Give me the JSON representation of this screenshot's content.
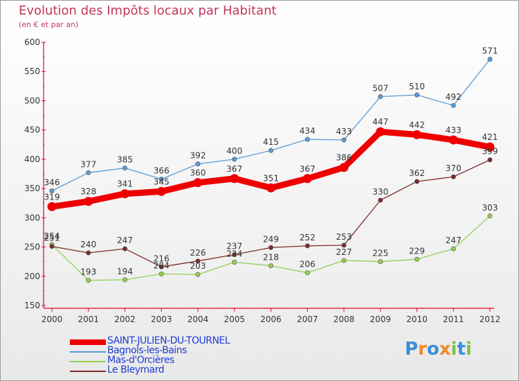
{
  "title": "Evolution des Impôts locaux par Habitant",
  "subtitle": "(en € et par an)",
  "colors": {
    "axis": "#e8002a",
    "label": "#333333",
    "title": "#c2355a"
  },
  "chart_data": {
    "type": "line",
    "title": "Evolution des Impôts locaux par Habitant",
    "subtitle": "(en € et par an)",
    "xlabel": "",
    "ylabel": "",
    "ylim": [
      150,
      600
    ],
    "yticks": [
      150,
      200,
      250,
      300,
      350,
      400,
      450,
      500,
      550,
      600
    ],
    "grid": false,
    "legend_position": "bottom-left",
    "categories": [
      "2000",
      "2001",
      "2002",
      "2003",
      "2004",
      "2005",
      "2006",
      "2007",
      "2008",
      "2009",
      "2010",
      "2011",
      "2012"
    ],
    "series": [
      {
        "name": "SAINT-JULIEN-DU-TOURNEL",
        "color": "#ee0000",
        "legend_text_color": "#1f3cd6",
        "bold": true,
        "values": [
          319,
          328,
          341,
          345,
          360,
          367,
          351,
          367,
          386,
          447,
          442,
          433,
          421
        ]
      },
      {
        "name": "Bagnols-les-Bains",
        "color": "#5b9bd5",
        "legend_text_color": "#1f3cd6",
        "bold": false,
        "values": [
          346,
          377,
          385,
          366,
          392,
          400,
          415,
          434,
          433,
          507,
          510,
          492,
          571
        ]
      },
      {
        "name": "Mas-d'Orcières",
        "color": "#92d050",
        "legend_text_color": "#1f3cd6",
        "bold": false,
        "values": [
          254,
          193,
          194,
          204,
          203,
          224,
          218,
          206,
          227,
          225,
          229,
          247,
          303
        ]
      },
      {
        "name": "Le Bleymard",
        "color": "#7b2c2c",
        "legend_text_color": "#1f3cd6",
        "bold": false,
        "values": [
          251,
          240,
          247,
          216,
          226,
          237,
          249,
          252,
          253,
          330,
          362,
          370,
          399
        ]
      }
    ]
  },
  "logo": {
    "letters": [
      "P",
      "r",
      "o",
      "x",
      "i",
      "t",
      "i"
    ],
    "colors": [
      "#3a8fd8",
      "#f08a24",
      "#3a8fd8",
      "#f08a24",
      "#7cc242",
      "#3a8fd8",
      "#7cc242"
    ]
  }
}
